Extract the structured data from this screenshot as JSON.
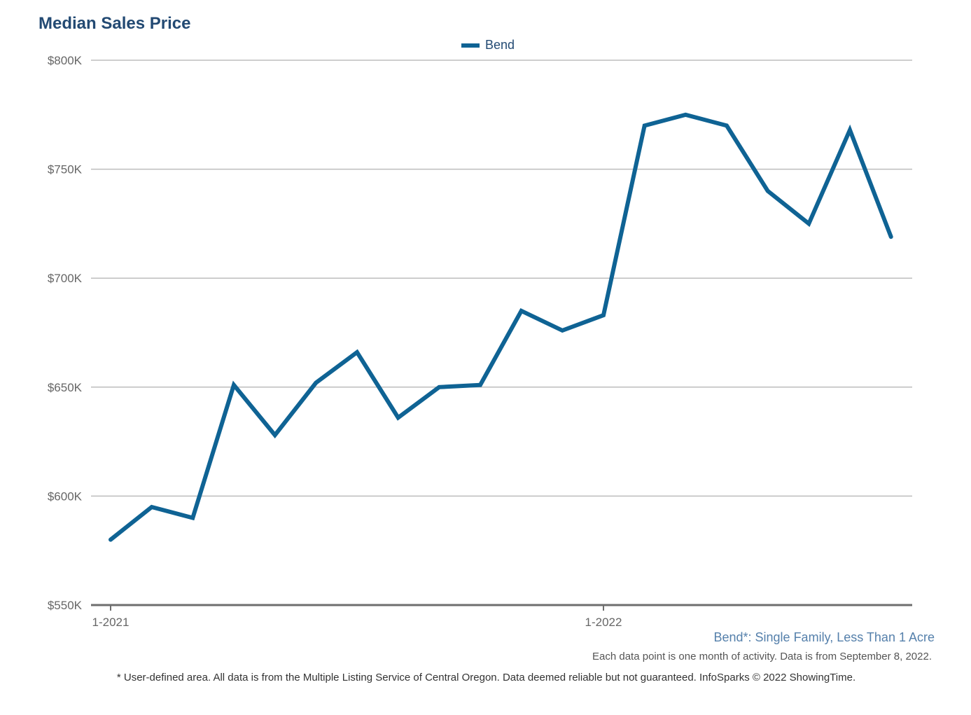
{
  "header": {
    "title": "Median Sales Price"
  },
  "legend": {
    "items": [
      {
        "label": "Bend",
        "color": "#0f6394"
      }
    ]
  },
  "footer": {
    "subtitle": "Bend*: Single Family, Less Than 1 Acre",
    "note": "Each data point is one month of activity. Data is from September 8, 2022.",
    "disclaimer": "* User-defined area. All data is from the Multiple Listing Service of Central Oregon. Data deemed reliable but not guaranteed. InfoSparks © 2022 ShowingTime."
  },
  "chart_data": {
    "type": "line",
    "title": "Median Sales Price",
    "xlabel": "",
    "ylabel": "",
    "x": [
      "1-2021",
      "2-2021",
      "3-2021",
      "4-2021",
      "5-2021",
      "6-2021",
      "7-2021",
      "8-2021",
      "9-2021",
      "10-2021",
      "11-2021",
      "12-2021",
      "1-2022",
      "2-2022",
      "3-2022",
      "4-2022",
      "5-2022",
      "6-2022",
      "7-2022",
      "8-2022"
    ],
    "x_tick_labels": [
      "1-2021",
      "1-2022"
    ],
    "y_tick_labels": [
      "$550K",
      "$600K",
      "$650K",
      "$700K",
      "$750K",
      "$800K"
    ],
    "ylim": [
      550000,
      800000
    ],
    "grid": true,
    "legend_position": "top-center",
    "series": [
      {
        "name": "Bend",
        "color": "#0f6394",
        "values": [
          580000,
          595000,
          590000,
          651000,
          628000,
          652000,
          666000,
          636000,
          650000,
          651000,
          685000,
          676000,
          683000,
          770000,
          775000,
          770000,
          740000,
          725000,
          768000,
          719000
        ]
      }
    ]
  }
}
